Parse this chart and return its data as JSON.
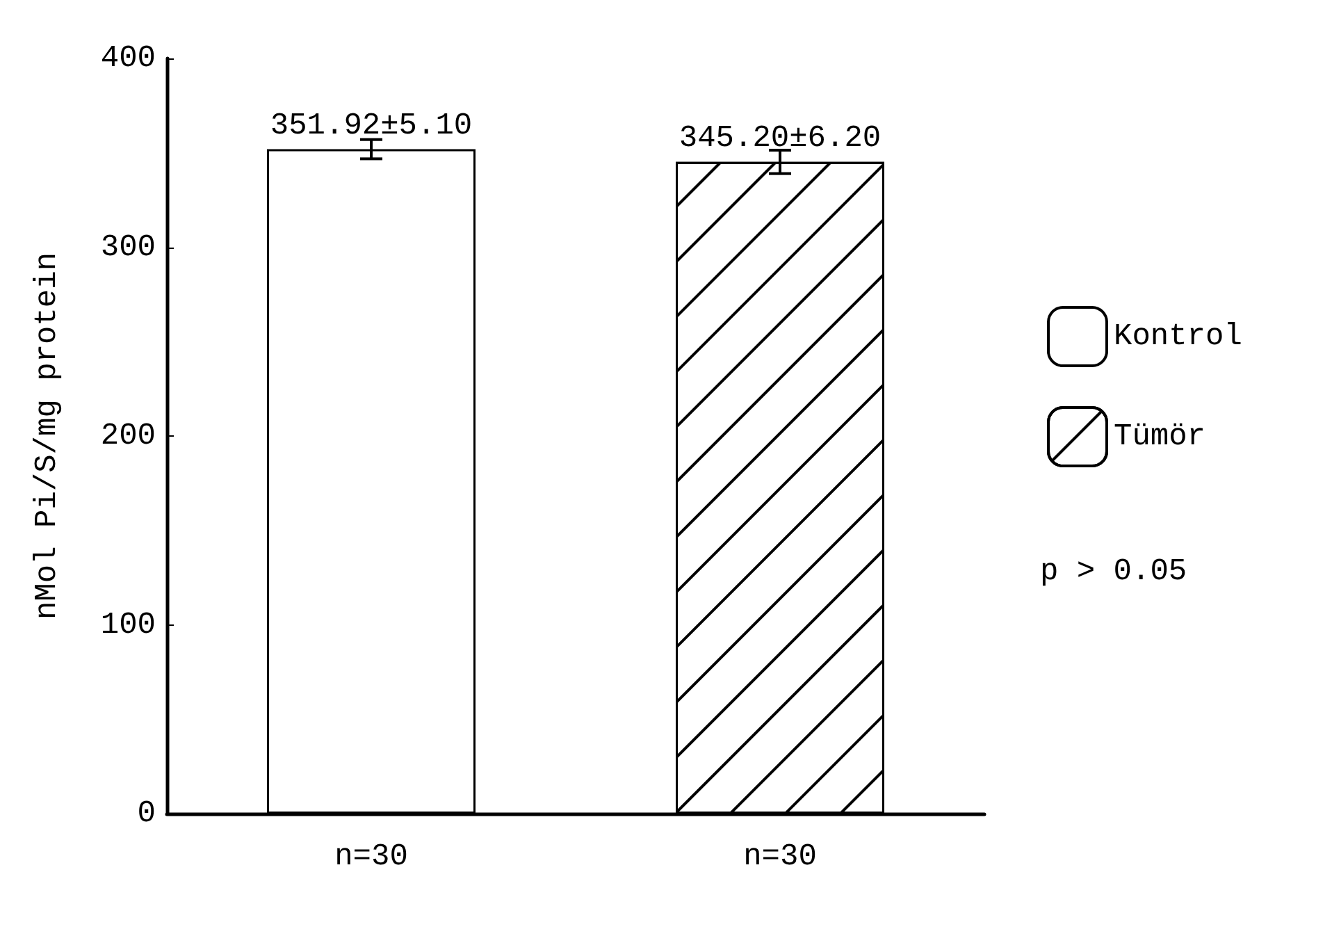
{
  "chart_data": {
    "type": "bar",
    "ylabel": "nMol Pi/S/mg protein",
    "categories": [
      "n=30",
      "n=30"
    ],
    "series": [
      {
        "name": "Kontrol",
        "color": "#ffffff",
        "values": [
          351.92,
          null
        ],
        "errors": [
          5.1,
          null
        ],
        "value_labels": [
          "351.92±5.10",
          null
        ]
      },
      {
        "name": "Tümör",
        "color": "#ffffff",
        "values": [
          null,
          345.2
        ],
        "errors": [
          null,
          6.2
        ],
        "value_labels": [
          null,
          "345.20±6.20"
        ]
      }
    ],
    "ylim": [
      0,
      400
    ],
    "yticks": [
      0,
      100,
      200,
      300,
      400
    ],
    "grid": false,
    "legend": "right",
    "annotations": [
      "p > 0.05"
    ]
  }
}
